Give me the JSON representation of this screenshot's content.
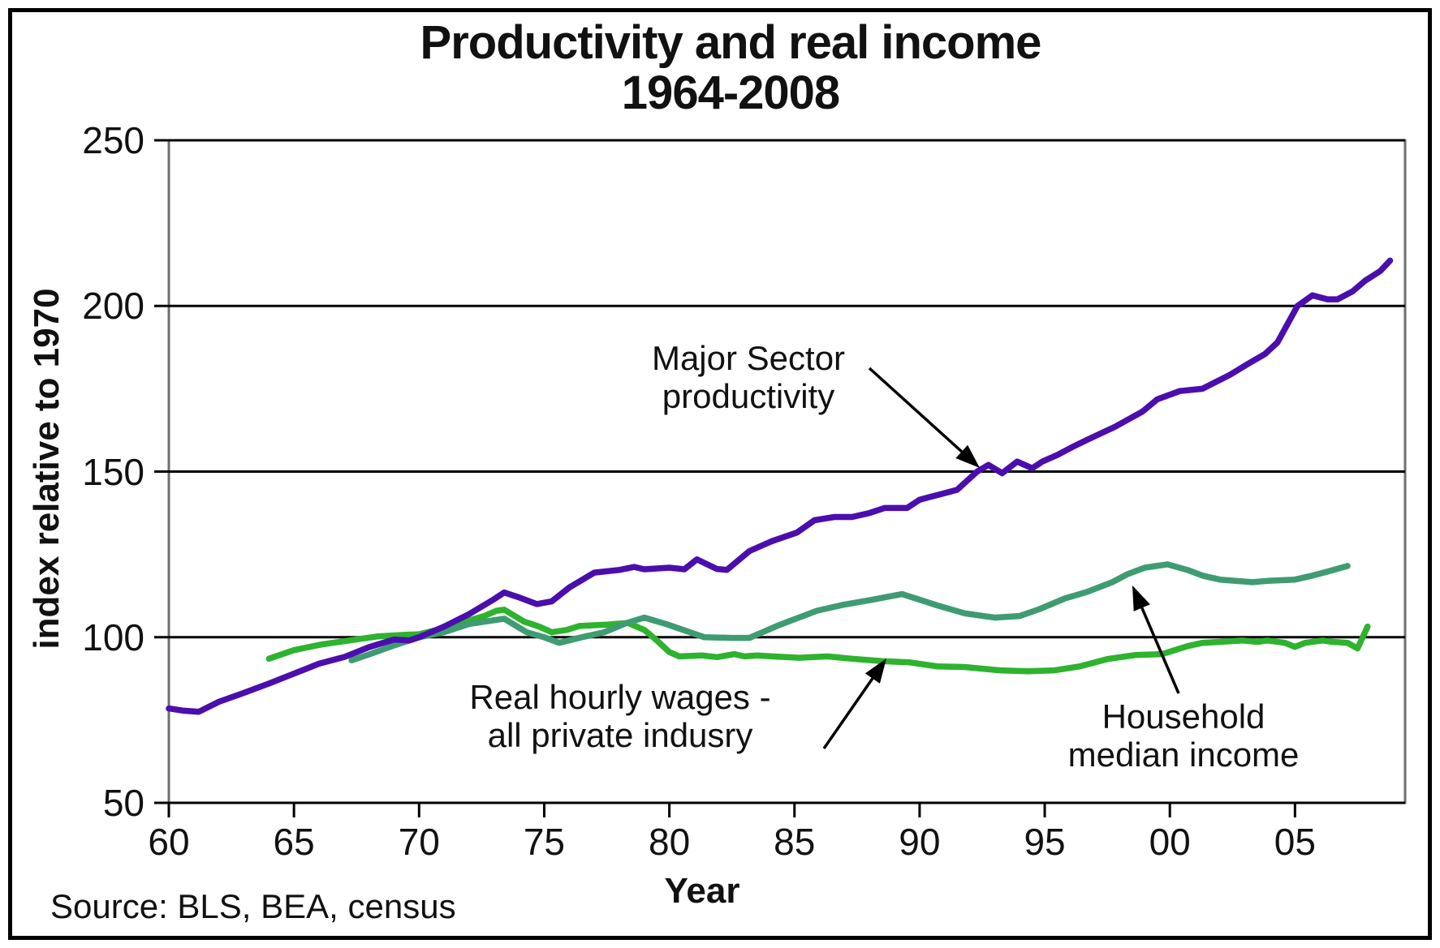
{
  "title": {
    "line1": "Productivity and real income",
    "line2": "1964-2008"
  },
  "y_axis": {
    "title": "index relative to 1970",
    "ticks": [
      250,
      200,
      150,
      100,
      50
    ]
  },
  "x_axis": {
    "title": "Year",
    "ticks": [
      {
        "label": "60",
        "year": 1960
      },
      {
        "label": "65",
        "year": 1965
      },
      {
        "label": "70",
        "year": 1970
      },
      {
        "label": "75",
        "year": 1975
      },
      {
        "label": "80",
        "year": 1980
      },
      {
        "label": "85",
        "year": 1985
      },
      {
        "label": "90",
        "year": 1990
      },
      {
        "label": "95",
        "year": 1995
      },
      {
        "label": "00",
        "year": 2000
      },
      {
        "label": "05",
        "year": 2005
      }
    ]
  },
  "source": "Source: BLS, BEA, census",
  "annotations": [
    {
      "id": "major-sector-productivity",
      "lines": [
        "Major Sector",
        "productivity"
      ],
      "arrow": {
        "from": [
          1071,
          454
        ],
        "to": [
          1207,
          577
        ]
      }
    },
    {
      "id": "real-hourly-wages",
      "lines": [
        "Real hourly wages -",
        "all private indusry"
      ],
      "arrow": {
        "from": [
          1015,
          923
        ],
        "to": [
          1092,
          812
        ]
      }
    },
    {
      "id": "household-median-income",
      "lines": [
        "Household",
        "median income"
      ],
      "arrow": {
        "from": [
          1452,
          855
        ],
        "to": [
          1395,
          722
        ]
      }
    }
  ],
  "chart_data": {
    "type": "line",
    "title": "Productivity and real income 1964-2008",
    "xlabel": "Year",
    "ylabel": "index relative to 1970",
    "xlim": [
      1960,
      2009.4
    ],
    "ylim": [
      50,
      250
    ],
    "grid": "horizontal",
    "gridline_values": [
      100,
      150,
      200,
      250
    ],
    "legend": "none (labels annotated with arrows)",
    "series": [
      {
        "name": "Real hourly wages - all private indusry",
        "color": "#2eb32e",
        "points": [
          [
            1964,
            93.5
          ],
          [
            1965,
            96.1
          ],
          [
            1966.1,
            97.8
          ],
          [
            1967.2,
            99
          ],
          [
            1968.3,
            100.2
          ],
          [
            1969.4,
            100.7
          ],
          [
            1970,
            100.9
          ],
          [
            1970.7,
            102.2
          ],
          [
            1971.5,
            103.9
          ],
          [
            1972.6,
            106.4
          ],
          [
            1973.1,
            108
          ],
          [
            1973.4,
            108.3
          ],
          [
            1974.2,
            104.7
          ],
          [
            1974.8,
            103.2
          ],
          [
            1975.3,
            101.5
          ],
          [
            1975.9,
            102.2
          ],
          [
            1976.4,
            103.4
          ],
          [
            1977.5,
            103.8
          ],
          [
            1978.35,
            104.3
          ],
          [
            1979,
            102.2
          ],
          [
            1979.5,
            99
          ],
          [
            1980,
            95.5
          ],
          [
            1980.4,
            94.2
          ],
          [
            1981.3,
            94.5
          ],
          [
            1981.9,
            94
          ],
          [
            1982.6,
            94.9
          ],
          [
            1983,
            94.2
          ],
          [
            1983.5,
            94.5
          ],
          [
            1984.1,
            94.2
          ],
          [
            1985.2,
            93.8
          ],
          [
            1986.3,
            94.2
          ],
          [
            1987.3,
            93.5
          ],
          [
            1988.5,
            92.8
          ],
          [
            1989.6,
            92.4
          ],
          [
            1990.7,
            91.2
          ],
          [
            1991.8,
            91
          ],
          [
            1993.2,
            90
          ],
          [
            1994.3,
            89.7
          ],
          [
            1995.4,
            90
          ],
          [
            1996.4,
            91.2
          ],
          [
            1997.5,
            93.4
          ],
          [
            1998.6,
            94.6
          ],
          [
            1999.7,
            94.9
          ],
          [
            2000.7,
            97.3
          ],
          [
            2001.3,
            98.3
          ],
          [
            2002,
            98.6
          ],
          [
            2002.9,
            99
          ],
          [
            2003.5,
            98.6
          ],
          [
            2003.9,
            99
          ],
          [
            2004.6,
            98.3
          ],
          [
            2005,
            97.1
          ],
          [
            2005.4,
            98.3
          ],
          [
            2006.1,
            99
          ],
          [
            2006.5,
            98.6
          ],
          [
            2007.1,
            98.3
          ],
          [
            2007.5,
            96.6
          ],
          [
            2007.9,
            103.2
          ]
        ]
      },
      {
        "name": "Household median income",
        "color": "#3f9c72",
        "points": [
          [
            1967.3,
            93
          ],
          [
            1968,
            94.8
          ],
          [
            1969,
            97.5
          ],
          [
            1970,
            100
          ],
          [
            1971,
            101.5
          ],
          [
            1972,
            104
          ],
          [
            1973.4,
            105.6
          ],
          [
            1974.3,
            101.5
          ],
          [
            1975,
            100
          ],
          [
            1975.6,
            98.3
          ],
          [
            1976.5,
            100
          ],
          [
            1977.4,
            101.5
          ],
          [
            1978.3,
            104.3
          ],
          [
            1979,
            105.9
          ],
          [
            1979.9,
            103.9
          ],
          [
            1981.4,
            100
          ],
          [
            1982.5,
            99.8
          ],
          [
            1983.2,
            99.8
          ],
          [
            1984.4,
            103.7
          ],
          [
            1985.9,
            108
          ],
          [
            1986.9,
            109.7
          ],
          [
            1988.1,
            111.3
          ],
          [
            1989.3,
            113
          ],
          [
            1990.7,
            109.6
          ],
          [
            1991.8,
            107.2
          ],
          [
            1993,
            105.9
          ],
          [
            1994,
            106.4
          ],
          [
            1994.8,
            108.5
          ],
          [
            1995.8,
            111.7
          ],
          [
            1996.7,
            113.7
          ],
          [
            1997.7,
            116.6
          ],
          [
            1998.3,
            119
          ],
          [
            1999,
            121
          ],
          [
            1999.9,
            122
          ],
          [
            2000.7,
            120.3
          ],
          [
            2001.3,
            118.6
          ],
          [
            2002,
            117.4
          ],
          [
            2003.3,
            116.6
          ],
          [
            2003.9,
            117
          ],
          [
            2005,
            117.4
          ],
          [
            2005.7,
            118.6
          ],
          [
            2006.3,
            119.8
          ],
          [
            2007.1,
            121.5
          ]
        ]
      },
      {
        "name": "Major Sector productivity",
        "color": "#4b0eae",
        "points": [
          [
            1960,
            78.5
          ],
          [
            1960.6,
            77.8
          ],
          [
            1961.2,
            77.5
          ],
          [
            1962,
            80.5
          ],
          [
            1963,
            83.2
          ],
          [
            1964,
            86
          ],
          [
            1965,
            89
          ],
          [
            1966,
            92
          ],
          [
            1967,
            94
          ],
          [
            1968,
            97
          ],
          [
            1969,
            99.3
          ],
          [
            1969.6,
            99
          ],
          [
            1970,
            100
          ],
          [
            1971,
            103.2
          ],
          [
            1972,
            107
          ],
          [
            1973,
            111.5
          ],
          [
            1973.4,
            113.5
          ],
          [
            1974,
            112
          ],
          [
            1974.7,
            110
          ],
          [
            1975.3,
            110.8
          ],
          [
            1976,
            115
          ],
          [
            1977,
            119.5
          ],
          [
            1978,
            120.3
          ],
          [
            1978.6,
            121.2
          ],
          [
            1979,
            120.5
          ],
          [
            1980,
            121
          ],
          [
            1980.6,
            120.5
          ],
          [
            1981.1,
            123.5
          ],
          [
            1981.9,
            120.6
          ],
          [
            1982.3,
            120.3
          ],
          [
            1983.2,
            126
          ],
          [
            1984.1,
            129
          ],
          [
            1985.1,
            131.6
          ],
          [
            1985.8,
            135.3
          ],
          [
            1986.6,
            136.3
          ],
          [
            1987.3,
            136.3
          ],
          [
            1988,
            137.5
          ],
          [
            1988.6,
            139
          ],
          [
            1989.5,
            139
          ],
          [
            1990,
            141.5
          ],
          [
            1990.8,
            143.1
          ],
          [
            1991.5,
            144.5
          ],
          [
            1992.3,
            150
          ],
          [
            1992.75,
            152
          ],
          [
            1993.3,
            149.5
          ],
          [
            1993.9,
            153
          ],
          [
            1994.5,
            151
          ],
          [
            1994.9,
            153
          ],
          [
            1995.5,
            155
          ],
          [
            1996.1,
            157.4
          ],
          [
            1996.7,
            159.6
          ],
          [
            1997.8,
            163.5
          ],
          [
            1998.9,
            168.1
          ],
          [
            1999.5,
            171.8
          ],
          [
            2000.4,
            174.3
          ],
          [
            2001.3,
            175
          ],
          [
            2002.4,
            179.2
          ],
          [
            2003.1,
            182.4
          ],
          [
            2003.8,
            185.5
          ],
          [
            2004.3,
            189
          ],
          [
            2005.1,
            200
          ],
          [
            2005.7,
            203.2
          ],
          [
            2006.3,
            202
          ],
          [
            2006.7,
            202
          ],
          [
            2007.3,
            204.4
          ],
          [
            2007.8,
            207.6
          ],
          [
            2008.4,
            210.5
          ],
          [
            2008.8,
            213.7
          ]
        ]
      }
    ]
  }
}
